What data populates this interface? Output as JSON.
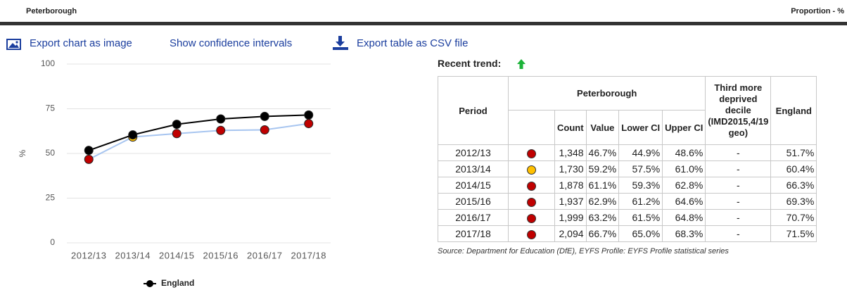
{
  "header": {
    "title": "Peterborough",
    "unit": "Proportion - %"
  },
  "toolbar": [
    "Export chart as image",
    "Show confidence intervals",
    "Export table as CSV file"
  ],
  "chart_data": {
    "type": "line",
    "y_label": "%",
    "categories": [
      "2012/13",
      "2013/14",
      "2014/15",
      "2015/16",
      "2016/17",
      "2017/18"
    ],
    "ylim": [
      0,
      100
    ],
    "yticks": [
      0,
      25,
      50,
      75,
      100
    ],
    "grid": true,
    "legend": "bottom",
    "series": [
      {
        "name": "England",
        "color": "#000000",
        "values": [
          51.7,
          60.4,
          66.3,
          69.3,
          70.7,
          71.5
        ]
      },
      {
        "color": "#a7c5f0",
        "point_colors": [
          "#c00000",
          "#ffc000",
          "#c00000",
          "#c00000",
          "#c00000",
          "#c00000"
        ],
        "values": [
          46.7,
          59.2,
          61.1,
          62.9,
          63.2,
          66.7
        ]
      }
    ]
  },
  "trend": {
    "label": "Recent trend:"
  },
  "table": {
    "headers": {
      "period": "Period",
      "area": "Peterborough",
      "deprived": "Third more deprived decile (IMD2015,4/19 geo)",
      "england": "England",
      "sub": [
        "Count",
        "Value",
        "Lower CI",
        "Upper CI"
      ]
    },
    "rows": [
      [
        "2012/13",
        "1,348",
        "46.7%",
        "44.9%",
        "48.6%",
        "-",
        "51.7%"
      ],
      [
        "2013/14",
        "1,730",
        "59.2%",
        "57.5%",
        "61.0%",
        "-",
        "60.4%"
      ],
      [
        "2014/15",
        "1,878",
        "61.1%",
        "59.3%",
        "62.8%",
        "-",
        "66.3%"
      ],
      [
        "2015/16",
        "1,937",
        "62.9%",
        "61.2%",
        "64.6%",
        "-",
        "69.3%"
      ],
      [
        "2016/17",
        "1,999",
        "63.2%",
        "61.5%",
        "64.8%",
        "-",
        "70.7%"
      ],
      [
        "2017/18",
        "2,094",
        "66.7%",
        "65.0%",
        "68.3%",
        "-",
        "71.5%"
      ]
    ]
  },
  "source": "Source: Department for Education (DfE), EYFS Profile: EYFS Profile statistical series"
}
